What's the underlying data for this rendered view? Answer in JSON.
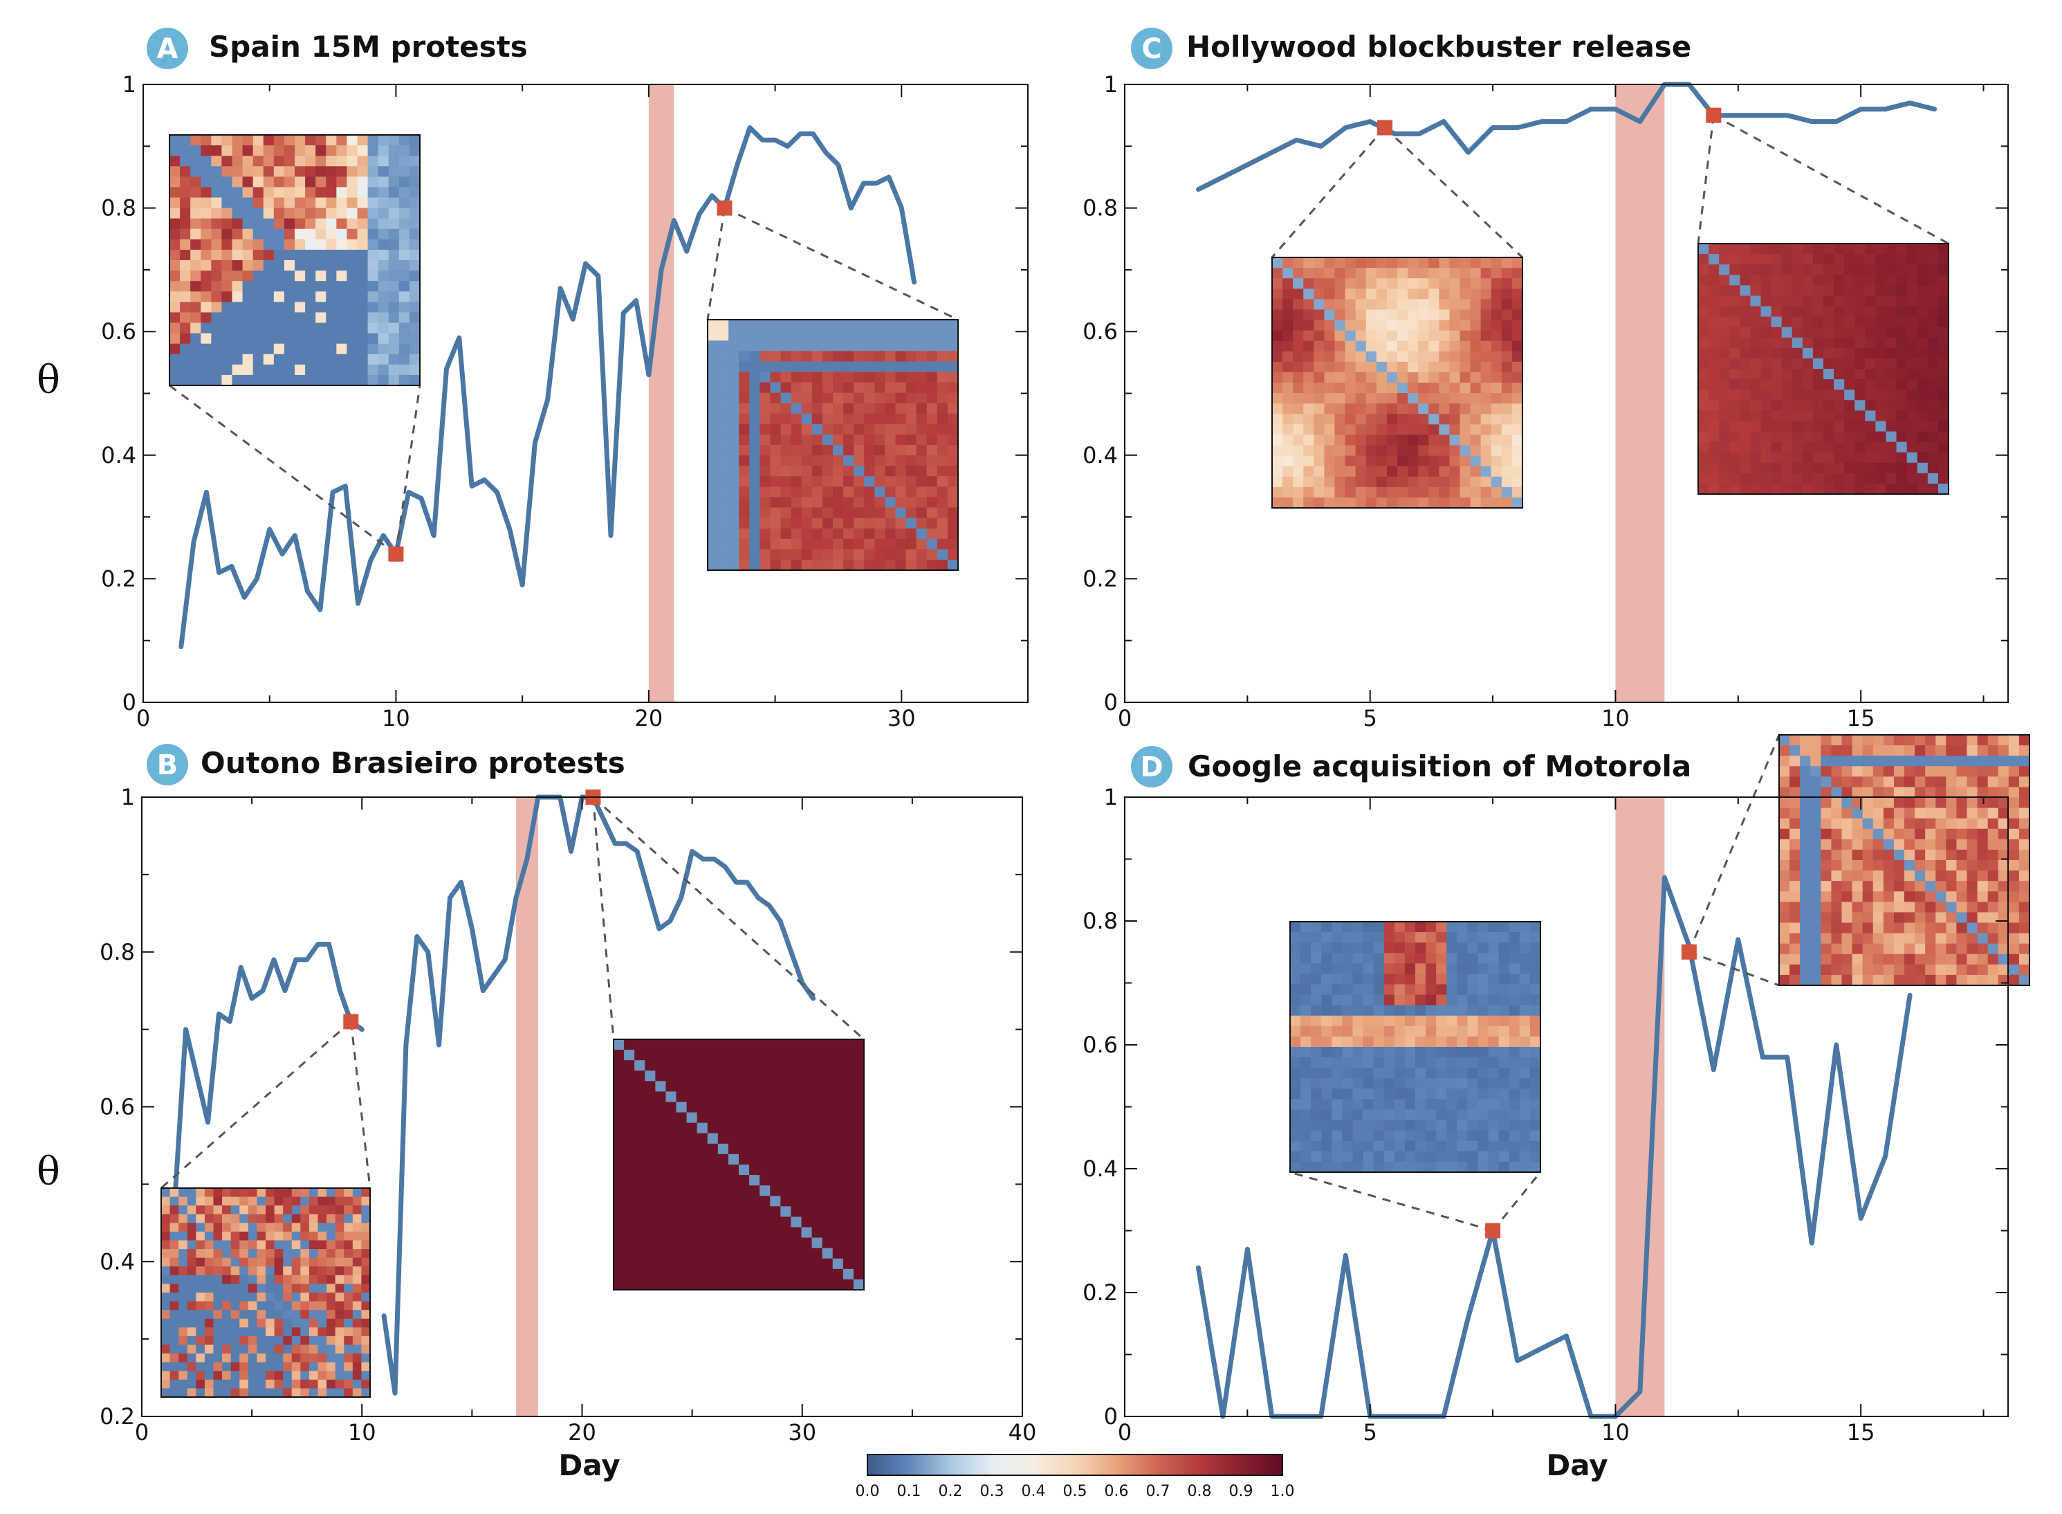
{
  "theme": {
    "line_color": "#4a77a3",
    "marker_color": "#d4523c",
    "event_band_color": "#eab5ac",
    "badge_color": "#6ab4d8",
    "axis_color": "#111111"
  },
  "colorbar": {
    "labels": [
      "0.0",
      "0.1",
      "0.2",
      "0.3",
      "0.4",
      "0.5",
      "0.6",
      "0.7",
      "0.8",
      "0.9",
      "1.0"
    ],
    "stops": [
      "#3b5c8c",
      "#5e86b8",
      "#a9c8e2",
      "#e6eef5",
      "#f6ede2",
      "#f7d6b5",
      "#e8a47c",
      "#cf6552",
      "#b23b3b",
      "#8a1f2e",
      "#5e0d22"
    ]
  },
  "chart_data": [
    {
      "id": "A",
      "type": "line",
      "badge": "A",
      "title": "Spain 15M protests",
      "ylabel": "θ",
      "xlabel": "",
      "xlim": [
        0,
        35
      ],
      "ylim": [
        0,
        1
      ],
      "xticks": [
        0,
        10,
        20,
        30
      ],
      "yticks": [
        0,
        0.2,
        0.4,
        0.6,
        0.8,
        1
      ],
      "ytick_labels": [
        "0",
        "0.2",
        "0.4",
        "0.6",
        "0.8",
        "1"
      ],
      "event_band": [
        20,
        21
      ],
      "series": [
        {
          "name": "theta",
          "x": [
            1.5,
            2,
            2.5,
            3,
            3.5,
            4,
            4.5,
            5,
            5.5,
            6,
            6.5,
            7,
            7.5,
            8,
            8.5,
            9,
            9.5,
            10,
            10.5,
            11,
            11.5,
            12,
            12.5,
            13,
            13.5,
            14,
            14.5,
            15,
            15.5,
            16,
            16.5,
            17,
            17.5,
            18,
            18.5,
            19,
            19.5,
            20,
            20.5,
            21,
            21.5,
            22,
            22.5,
            23,
            23.5,
            24,
            24.5,
            25,
            25.5,
            26,
            26.5,
            27,
            27.5,
            28,
            28.5,
            29,
            29.5,
            30,
            30.5
          ],
          "y": [
            0.09,
            0.26,
            0.34,
            0.21,
            0.22,
            0.17,
            0.2,
            0.28,
            0.24,
            0.27,
            0.18,
            0.15,
            0.34,
            0.35,
            0.16,
            0.23,
            0.27,
            0.24,
            0.34,
            0.33,
            0.27,
            0.54,
            0.59,
            0.35,
            0.36,
            0.34,
            0.28,
            0.19,
            0.42,
            0.49,
            0.67,
            0.62,
            0.71,
            0.69,
            0.27,
            0.63,
            0.65,
            0.53,
            0.7,
            0.78,
            0.73,
            0.79,
            0.82,
            0.8,
            0.87,
            0.93,
            0.91,
            0.91,
            0.9,
            0.92,
            0.92,
            0.89,
            0.87,
            0.8,
            0.84,
            0.84,
            0.85,
            0.8,
            0.68
          ]
        }
      ],
      "highlight_points": [
        {
          "x": 10,
          "y": 0.24
        },
        {
          "x": 23,
          "y": 0.8
        }
      ]
    },
    {
      "id": "B",
      "type": "line",
      "badge": "B",
      "title": "Outono Brasieiro protests",
      "ylabel": "θ",
      "xlabel": "Day",
      "xlim": [
        0,
        40
      ],
      "ylim": [
        0.2,
        1
      ],
      "xticks": [
        0,
        10,
        20,
        30,
        40
      ],
      "yticks": [
        0.2,
        0.4,
        0.6,
        0.8,
        1
      ],
      "ytick_labels": [
        "0.2",
        "0.4",
        "0.6",
        "0.8",
        "1"
      ],
      "event_band": [
        17,
        18
      ],
      "series": [
        {
          "name": "theta-part1",
          "x": [
            1.5,
            2,
            2.5,
            3,
            3.5,
            4,
            4.5,
            5,
            5.5,
            6,
            6.5,
            7,
            7.5,
            8,
            8.5,
            9,
            9.5,
            10
          ],
          "y": [
            0.48,
            0.7,
            0.64,
            0.58,
            0.72,
            0.71,
            0.78,
            0.74,
            0.75,
            0.79,
            0.75,
            0.79,
            0.79,
            0.81,
            0.81,
            0.75,
            0.71,
            0.7
          ]
        },
        {
          "name": "theta-part2",
          "x": [
            11,
            11.5,
            12,
            12.5,
            13,
            13.5,
            14,
            14.5,
            15,
            15.5,
            16,
            16.5,
            17,
            17.5,
            18,
            18.5,
            19,
            19.5,
            20,
            20.5,
            21,
            21.5,
            22,
            22.5,
            23,
            23.5,
            24,
            24.5,
            25,
            25.5,
            26,
            26.5,
            27,
            27.5,
            28,
            28.5,
            29,
            29.5,
            30,
            30.5
          ],
          "y": [
            0.33,
            0.23,
            0.68,
            0.82,
            0.8,
            0.68,
            0.87,
            0.89,
            0.83,
            0.75,
            0.77,
            0.79,
            0.87,
            0.92,
            1.0,
            1.0,
            1.0,
            0.93,
            1.0,
            1.0,
            0.97,
            0.94,
            0.94,
            0.93,
            0.88,
            0.83,
            0.84,
            0.87,
            0.93,
            0.92,
            0.92,
            0.91,
            0.89,
            0.89,
            0.87,
            0.86,
            0.84,
            0.8,
            0.76,
            0.74
          ]
        }
      ],
      "highlight_points": [
        {
          "x": 9.5,
          "y": 0.71
        },
        {
          "x": 20.5,
          "y": 1.0
        }
      ]
    },
    {
      "id": "C",
      "type": "line",
      "badge": "C",
      "title": "Hollywood blockbuster release",
      "ylabel": "",
      "xlabel": "",
      "xlim": [
        0,
        18
      ],
      "ylim": [
        0,
        1
      ],
      "xticks": [
        0,
        5,
        10,
        15
      ],
      "yticks": [
        0,
        0.2,
        0.4,
        0.6,
        0.8,
        1
      ],
      "ytick_labels": [
        "0",
        "0.2",
        "0.4",
        "0.6",
        "0.8",
        "1"
      ],
      "event_band": [
        10,
        11
      ],
      "series": [
        {
          "name": "theta",
          "x": [
            1.5,
            2,
            2.5,
            3,
            3.5,
            4,
            4.5,
            5,
            5.5,
            6,
            6.5,
            7,
            7.5,
            8,
            8.5,
            9,
            9.5,
            10,
            10.5,
            11,
            11.5,
            12,
            12.5,
            13,
            13.5,
            14,
            14.5,
            15,
            15.5,
            16,
            16.5
          ],
          "y": [
            0.83,
            0.85,
            0.87,
            0.89,
            0.91,
            0.9,
            0.93,
            0.94,
            0.92,
            0.92,
            0.94,
            0.89,
            0.93,
            0.93,
            0.94,
            0.94,
            0.96,
            0.96,
            0.94,
            1.0,
            1.0,
            0.95,
            0.95,
            0.95,
            0.95,
            0.94,
            0.94,
            0.96,
            0.96,
            0.97,
            0.96
          ]
        }
      ],
      "highlight_points": [
        {
          "x": 5.3,
          "y": 0.93
        },
        {
          "x": 12,
          "y": 0.95
        }
      ]
    },
    {
      "id": "D",
      "type": "line",
      "badge": "D",
      "title": "Google acquisition of Motorola",
      "ylabel": "",
      "xlabel": "Day",
      "xlim": [
        0,
        18
      ],
      "ylim": [
        0,
        1
      ],
      "xticks": [
        0,
        5,
        10,
        15
      ],
      "yticks": [
        0,
        0.2,
        0.4,
        0.6,
        0.8,
        1
      ],
      "ytick_labels": [
        "0",
        "0.2",
        "0.4",
        "0.6",
        "0.8",
        "1"
      ],
      "event_band": [
        10,
        11
      ],
      "series": [
        {
          "name": "theta",
          "x": [
            1.5,
            2,
            2.5,
            3,
            3.5,
            4,
            4.5,
            5,
            5.5,
            6,
            6.5,
            7,
            7.5,
            8,
            8.5,
            9,
            9.5,
            10,
            10.5,
            11,
            11.5,
            12,
            12.5,
            13,
            13.5,
            14,
            14.5,
            15,
            15.5,
            16
          ],
          "y": [
            0.24,
            0.0,
            0.27,
            0.0,
            0.0,
            0.0,
            0.26,
            0.0,
            0.0,
            0.0,
            0.0,
            0.16,
            0.3,
            0.09,
            0.11,
            0.13,
            0.0,
            0.0,
            0.04,
            0.87,
            0.76,
            0.56,
            0.77,
            0.58,
            0.58,
            0.28,
            0.6,
            0.32,
            0.42,
            0.68
          ]
        }
      ],
      "highlight_points": [
        {
          "x": 7.5,
          "y": 0.3
        },
        {
          "x": 11.5,
          "y": 0.75
        }
      ]
    }
  ]
}
